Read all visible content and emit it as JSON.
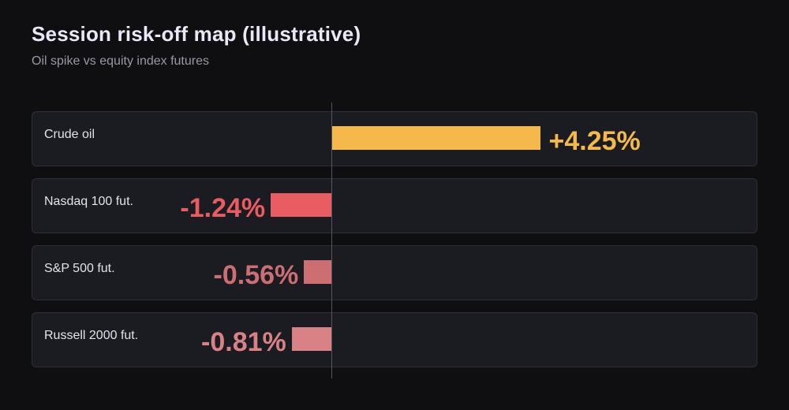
{
  "title": "Session risk-off map (illustrative)",
  "subtitle": "Oil spike vs equity index futures",
  "chart_data": {
    "type": "bar",
    "orientation": "horizontal",
    "title": "Session risk-off map (illustrative)",
    "subtitle": "Oil spike vs equity index futures",
    "categories": [
      "Crude oil",
      "Nasdaq 100 fut.",
      "S&P 500 fut.",
      "Russell 2000 fut."
    ],
    "values": [
      4.25,
      -1.24,
      -0.56,
      -0.81
    ],
    "value_labels": [
      "+4.25%",
      "-1.24%",
      "-0.56%",
      "-0.81%"
    ],
    "unit": "%",
    "xlabel": "",
    "ylabel": "",
    "grid": false,
    "legend": "none",
    "colors": [
      "#f5b84a",
      "#e85c62",
      "#cc6e72",
      "#d98285"
    ]
  }
}
